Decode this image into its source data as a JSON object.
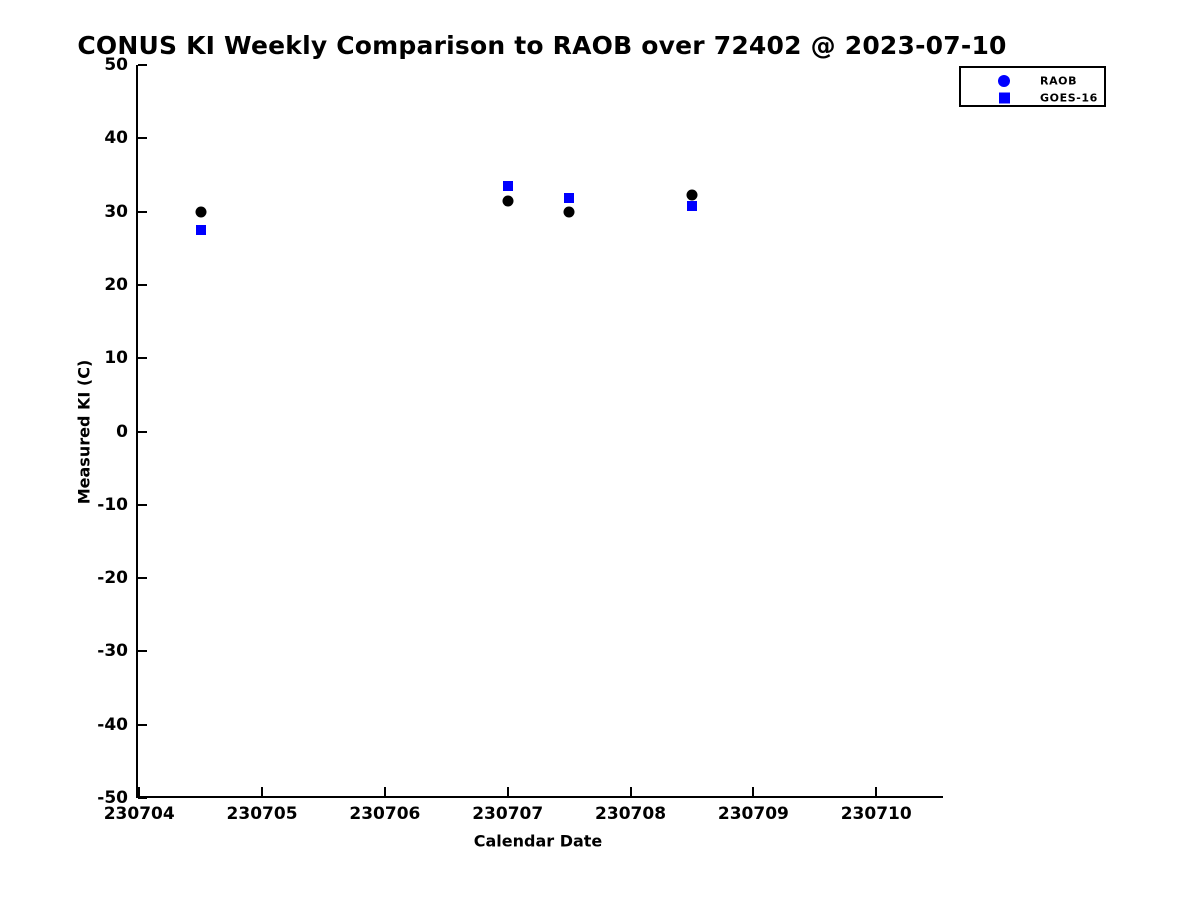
{
  "chart_data": {
    "type": "scatter",
    "title": "CONUS KI Weekly Comparison to RAOB over 72402 @ 2023-07-10",
    "xlabel": "Calendar Date",
    "ylabel": "Measured KI (C)",
    "xlim": [
      230703.99,
      230710.56
    ],
    "ylim": [
      -50,
      50
    ],
    "x_ticks": [
      230704,
      230705,
      230706,
      230707,
      230708,
      230709,
      230710
    ],
    "y_ticks": [
      50,
      40,
      30,
      20,
      10,
      0,
      -10,
      -20,
      -30,
      -40,
      -50
    ],
    "grid": false,
    "legend_position": "top-right-outside",
    "colors": {
      "raob": "#000000",
      "goes16": "#0000ff",
      "legend_raob_marker": "#0000ff",
      "axis": "#000000"
    },
    "series": [
      {
        "name": "RAOB",
        "marker": "circle",
        "color": "#000000",
        "legend_marker_color": "#0000ff",
        "points": [
          {
            "x": 230704.5,
            "y": 30.0
          },
          {
            "x": 230707.0,
            "y": 31.5
          },
          {
            "x": 230707.5,
            "y": 30.0
          },
          {
            "x": 230708.5,
            "y": 32.2
          }
        ]
      },
      {
        "name": "GOES-16",
        "marker": "square",
        "color": "#0000ff",
        "legend_marker_color": "#0000ff",
        "points": [
          {
            "x": 230704.5,
            "y": 27.5
          },
          {
            "x": 230707.0,
            "y": 33.5
          },
          {
            "x": 230707.5,
            "y": 31.8
          },
          {
            "x": 230708.5,
            "y": 30.8
          }
        ]
      }
    ]
  }
}
